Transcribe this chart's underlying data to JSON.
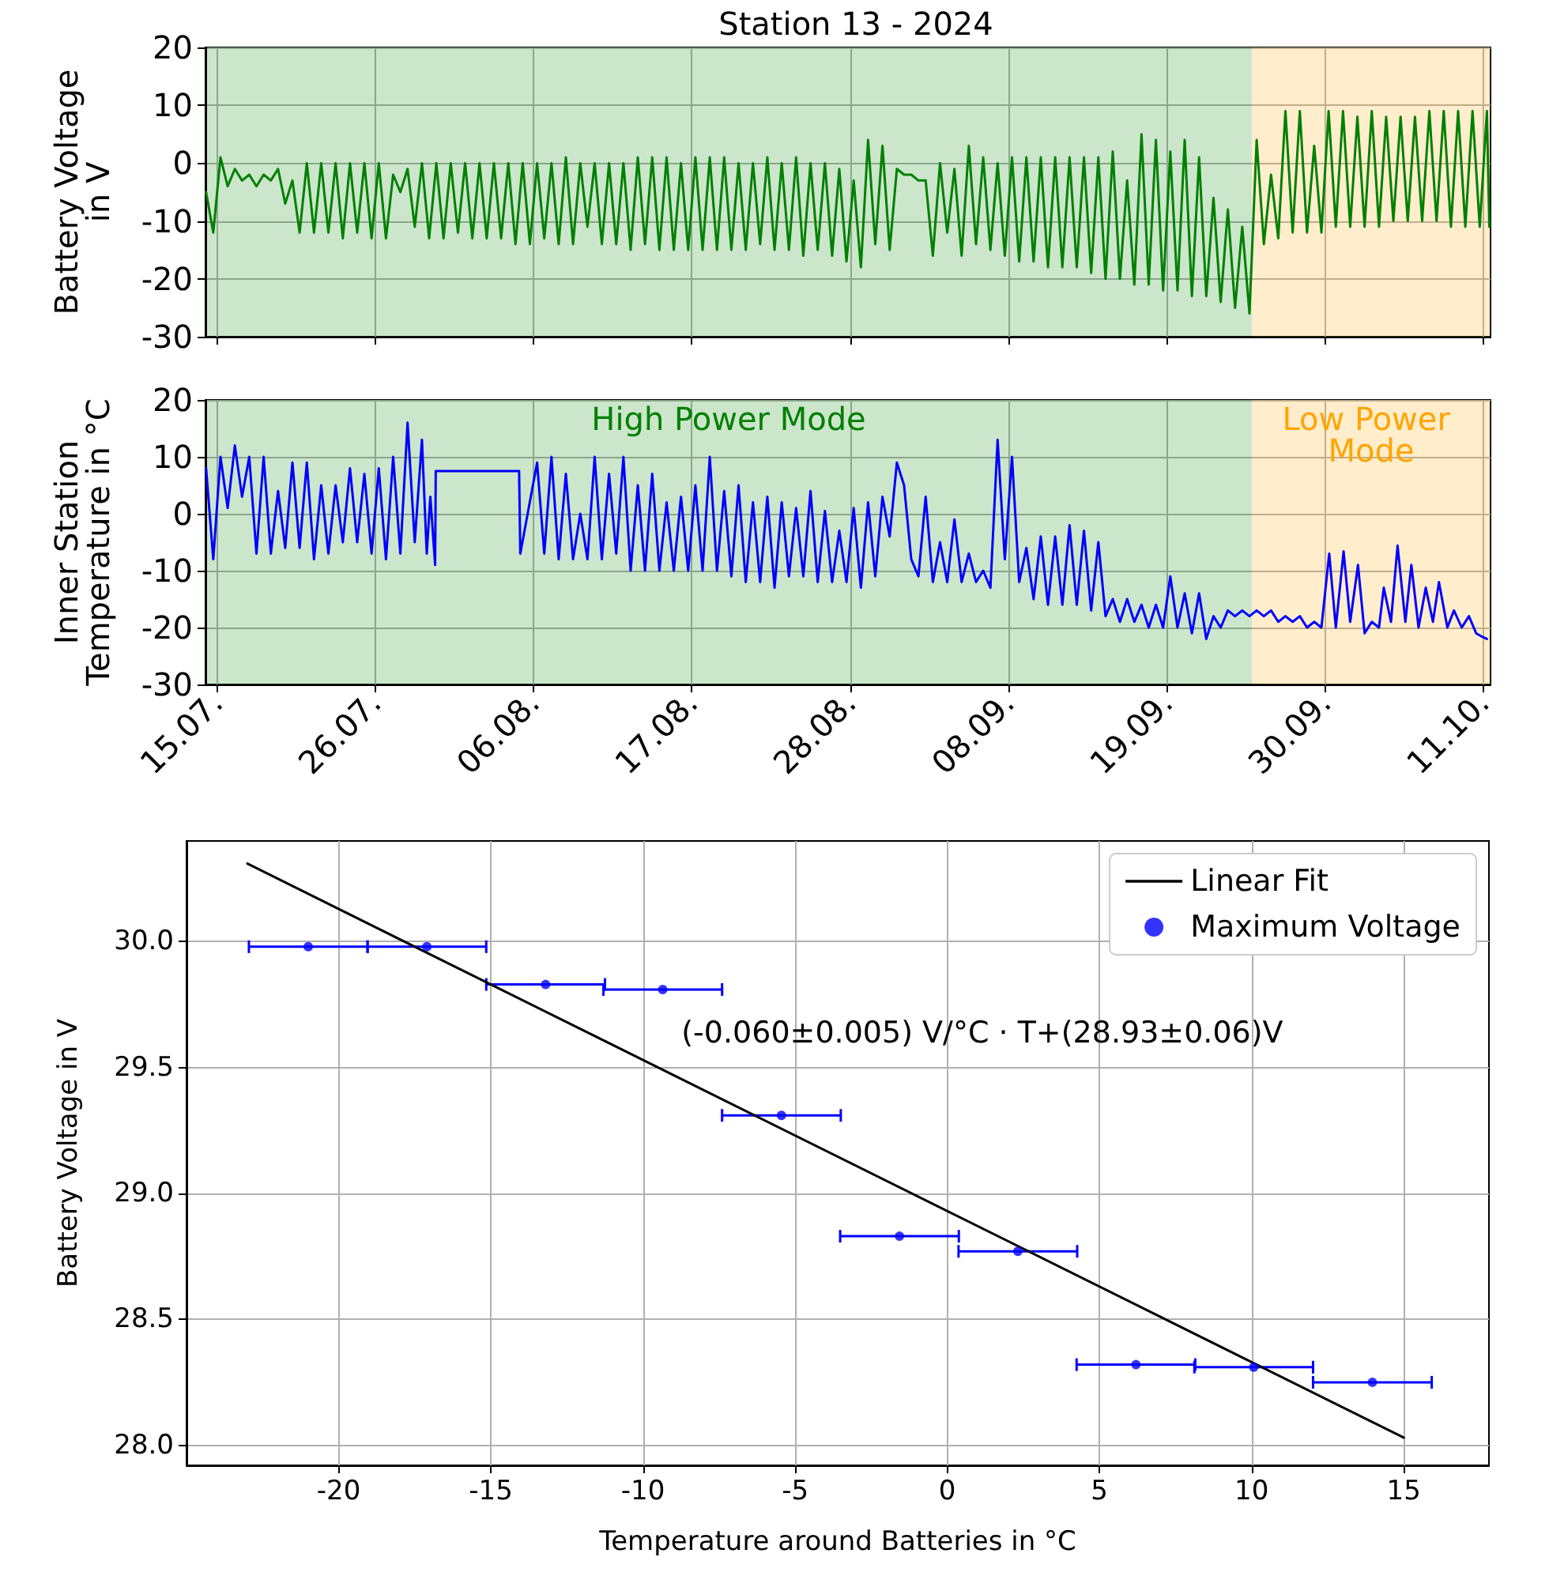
{
  "chart_data": [
    {
      "type": "line",
      "title": "Station 13 - 2024",
      "ylabel": "Battery Voltage\nin V",
      "xlim": [
        "2024-07-14T05:00",
        "2024-10-11T12:00"
      ],
      "ylim": [
        -30,
        20
      ],
      "yticks": [
        -30,
        -20,
        -10,
        0,
        10,
        20
      ],
      "xticks": [
        {
          "value": "2024-07-15",
          "label": null
        },
        {
          "value": "2024-07-26",
          "label": null
        },
        {
          "value": "2024-08-06",
          "label": null
        },
        {
          "value": "2024-08-17",
          "label": null
        },
        {
          "value": "2024-08-28",
          "label": null
        },
        {
          "value": "2024-09-08",
          "label": null
        },
        {
          "value": "2024-09-19",
          "label": null
        },
        {
          "value": "2024-09-30",
          "label": null
        },
        {
          "value": "2024-10-11",
          "label": null
        }
      ],
      "tick_labels": "y",
      "grid": true,
      "legend": false,
      "bands": [
        {
          "axis": "x",
          "from": "2024-07-14T05:00",
          "to": "2024-09-24T22:00",
          "color": "#008000"
        },
        {
          "axis": "x",
          "from": "2024-09-24T22:00",
          "to": "2024-10-11T12:00",
          "color": "#ffa500"
        }
      ],
      "series": [
        {
          "color": "#008000",
          "x": [
            "2024-07-14T06:00",
            "2024-07-14T18:00",
            "2024-07-15T06:00",
            "2024-07-15T18:00",
            "2024-07-16T06:00",
            "2024-07-16T18:00",
            "2024-07-17T06:00",
            "2024-07-17T18:00",
            "2024-07-18T06:00",
            "2024-07-18T18:00",
            "2024-07-19T06:00",
            "2024-07-19T18:00",
            "2024-07-20T06:00",
            "2024-07-20T18:00",
            "2024-07-21T06:00",
            "2024-07-21T18:00",
            "2024-07-22T06:00",
            "2024-07-22T18:00",
            "2024-07-23T06:00",
            "2024-07-23T18:00",
            "2024-07-24T06:00",
            "2024-07-24T18:00",
            "2024-07-25T06:00",
            "2024-07-25T18:00",
            "2024-07-26T06:00",
            "2024-07-26T18:00",
            "2024-07-27T06:00",
            "2024-07-27T18:00",
            "2024-07-28T06:00",
            "2024-07-28T18:00",
            "2024-07-29T06:00",
            "2024-07-29T18:00",
            "2024-07-30T06:00",
            "2024-07-30T18:00",
            "2024-07-31T06:00",
            "2024-07-31T18:00",
            "2024-08-01T06:00",
            "2024-08-01T18:00",
            "2024-08-02T06:00",
            "2024-08-02T18:00",
            "2024-08-03T06:00",
            "2024-08-03T18:00",
            "2024-08-04T06:00",
            "2024-08-04T18:00",
            "2024-08-05T06:00",
            "2024-08-05T18:00",
            "2024-08-06T06:00",
            "2024-08-06T18:00",
            "2024-08-07T06:00",
            "2024-08-07T18:00",
            "2024-08-08T06:00",
            "2024-08-08T18:00",
            "2024-08-09T06:00",
            "2024-08-09T18:00",
            "2024-08-10T06:00",
            "2024-08-10T18:00",
            "2024-08-11T06:00",
            "2024-08-11T18:00",
            "2024-08-12T06:00",
            "2024-08-12T18:00",
            "2024-08-13T06:00",
            "2024-08-13T18:00",
            "2024-08-14T06:00",
            "2024-08-14T18:00",
            "2024-08-15T06:00",
            "2024-08-15T18:00",
            "2024-08-16T06:00",
            "2024-08-16T18:00",
            "2024-08-17T06:00",
            "2024-08-17T18:00",
            "2024-08-18T06:00",
            "2024-08-18T18:00",
            "2024-08-19T06:00",
            "2024-08-19T18:00",
            "2024-08-20T06:00",
            "2024-08-20T18:00",
            "2024-08-21T06:00",
            "2024-08-21T18:00",
            "2024-08-22T06:00",
            "2024-08-22T18:00",
            "2024-08-23T06:00",
            "2024-08-23T18:00",
            "2024-08-24T06:00",
            "2024-08-24T18:00",
            "2024-08-25T06:00",
            "2024-08-25T18:00",
            "2024-08-26T06:00",
            "2024-08-26T18:00",
            "2024-08-27T06:00",
            "2024-08-27T18:00",
            "2024-08-28T06:00",
            "2024-08-28T18:00",
            "2024-08-29T06:00",
            "2024-08-29T18:00",
            "2024-08-30T06:00",
            "2024-08-30T18:00",
            "2024-08-31T06:00",
            "2024-08-31T18:00",
            "2024-09-01T06:00",
            "2024-09-01T18:00",
            "2024-09-02T06:00",
            "2024-09-02T18:00",
            "2024-09-03T06:00",
            "2024-09-03T18:00",
            "2024-09-04T06:00",
            "2024-09-04T18:00",
            "2024-09-05T06:00",
            "2024-09-05T18:00",
            "2024-09-06T06:00",
            "2024-09-06T18:00",
            "2024-09-07T06:00",
            "2024-09-07T18:00",
            "2024-09-08T06:00",
            "2024-09-08T18:00",
            "2024-09-09T06:00",
            "2024-09-09T18:00",
            "2024-09-10T06:00",
            "2024-09-10T18:00",
            "2024-09-11T06:00",
            "2024-09-11T18:00",
            "2024-09-12T06:00",
            "2024-09-12T18:00",
            "2024-09-13T06:00",
            "2024-09-13T18:00",
            "2024-09-14T06:00",
            "2024-09-14T18:00",
            "2024-09-15T06:00",
            "2024-09-15T18:00",
            "2024-09-16T06:00",
            "2024-09-16T18:00",
            "2024-09-17T06:00",
            "2024-09-17T18:00",
            "2024-09-18T06:00",
            "2024-09-18T18:00",
            "2024-09-19T06:00",
            "2024-09-19T18:00",
            "2024-09-20T06:00",
            "2024-09-20T18:00",
            "2024-09-21T06:00",
            "2024-09-21T18:00",
            "2024-09-22T06:00",
            "2024-09-22T18:00",
            "2024-09-23T06:00",
            "2024-09-23T18:00",
            "2024-09-24T06:00",
            "2024-09-24T18:00",
            "2024-09-25T06:00",
            "2024-09-25T18:00",
            "2024-09-26T06:00",
            "2024-09-26T18:00",
            "2024-09-27T06:00",
            "2024-09-27T18:00",
            "2024-09-28T06:00",
            "2024-09-28T18:00",
            "2024-09-29T06:00",
            "2024-09-29T18:00",
            "2024-09-30T06:00",
            "2024-09-30T18:00",
            "2024-10-01T06:00",
            "2024-10-01T18:00",
            "2024-10-02T06:00",
            "2024-10-02T18:00",
            "2024-10-03T06:00",
            "2024-10-03T18:00",
            "2024-10-04T06:00",
            "2024-10-04T18:00",
            "2024-10-05T06:00",
            "2024-10-05T18:00",
            "2024-10-06T06:00",
            "2024-10-06T18:00",
            "2024-10-07T06:00",
            "2024-10-07T18:00",
            "2024-10-08T06:00",
            "2024-10-08T18:00",
            "2024-10-09T06:00",
            "2024-10-09T18:00",
            "2024-10-10T06:00",
            "2024-10-10T18:00",
            "2024-10-11T06:00",
            "2024-10-11T10:00"
          ],
          "values": [
            -5,
            -12,
            1,
            -4,
            -1,
            -3,
            -2,
            -4,
            -2,
            -3,
            -1,
            -7,
            -3,
            -12,
            0,
            -12,
            0,
            -12,
            0,
            -13,
            0,
            -12,
            0,
            -13,
            0,
            -13,
            -2,
            -5,
            -1,
            -11,
            0,
            -13,
            0,
            -13,
            0,
            -12,
            0,
            -13,
            0,
            -13,
            0,
            -13,
            0,
            -14,
            0,
            -14,
            0,
            -13,
            0,
            -14,
            1,
            -14,
            0,
            -11,
            0,
            -14,
            0,
            -14,
            0,
            -15,
            1,
            -14,
            1,
            -15,
            1,
            -15,
            0,
            -15,
            1,
            -15,
            1,
            -15,
            1,
            -15,
            0,
            -15,
            0,
            -14,
            1,
            -15,
            0,
            -15,
            1,
            -16,
            0,
            -15,
            0,
            -16,
            -1,
            -17,
            -3,
            -18,
            4,
            -14,
            3,
            -15,
            -1,
            -2,
            -2,
            -3,
            -3,
            -16,
            0,
            -12,
            -1,
            -16,
            3,
            -14,
            1,
            -15,
            0,
            -16,
            1,
            -17,
            1,
            -17,
            1,
            -18,
            1,
            -18,
            1,
            -18,
            1,
            -19,
            1,
            -20,
            2,
            -20,
            -3,
            -21,
            5,
            -21,
            4,
            -22,
            2,
            -22,
            4,
            -23,
            1,
            -23,
            -6,
            -24,
            -8,
            -25,
            -11,
            -26,
            4,
            -14,
            -2,
            -13,
            9,
            -12,
            9,
            -12,
            3,
            -12,
            9,
            -11,
            9,
            -11,
            8,
            -11,
            9,
            -11,
            8,
            -10,
            8,
            -10,
            8,
            -10,
            9,
            -10,
            9,
            -11,
            9,
            -11,
            9,
            -11,
            9,
            -11
          ]
        }
      ]
    },
    {
      "type": "line",
      "ylabel": "Inner Station\nTemperature in °C",
      "xlim": [
        "2024-07-14T05:00",
        "2024-10-11T12:00"
      ],
      "ylim": [
        -30,
        20
      ],
      "yticks": [
        -30,
        -20,
        -10,
        0,
        10,
        20
      ],
      "xticks": [
        {
          "value": "2024-07-15",
          "label": "15.07."
        },
        {
          "value": "2024-07-26",
          "label": "26.07."
        },
        {
          "value": "2024-08-06",
          "label": "06.08."
        },
        {
          "value": "2024-08-17",
          "label": "17.08."
        },
        {
          "value": "2024-08-28",
          "label": "28.08."
        },
        {
          "value": "2024-09-08",
          "label": "08.09."
        },
        {
          "value": "2024-09-19",
          "label": "19.09."
        },
        {
          "value": "2024-09-30",
          "label": "30.09."
        },
        {
          "value": "2024-10-11",
          "label": "11.10."
        }
      ],
      "grid": true,
      "legend": false,
      "bands": [
        {
          "axis": "x",
          "from": "2024-07-14T05:00",
          "to": "2024-09-24T22:00",
          "color": "#008000",
          "label": "High Power Mode"
        },
        {
          "axis": "x",
          "from": "2024-09-24T22:00",
          "to": "2024-10-11T12:00",
          "color": "#ffa500",
          "label": "Low Power Mode"
        }
      ],
      "series": [
        {
          "color": "#0000ff",
          "x": [
            "2024-07-14T06:00",
            "2024-07-14T18:00",
            "2024-07-15T06:00",
            "2024-07-15T18:00",
            "2024-07-16T06:00",
            "2024-07-16T18:00",
            "2024-07-17T06:00",
            "2024-07-17T18:00",
            "2024-07-18T06:00",
            "2024-07-18T18:00",
            "2024-07-19T06:00",
            "2024-07-19T18:00",
            "2024-07-20T06:00",
            "2024-07-20T18:00",
            "2024-07-21T06:00",
            "2024-07-21T18:00",
            "2024-07-22T06:00",
            "2024-07-22T18:00",
            "2024-07-23T06:00",
            "2024-07-23T18:00",
            "2024-07-24T06:00",
            "2024-07-24T18:00",
            "2024-07-25T06:00",
            "2024-07-25T18:00",
            "2024-07-26T06:00",
            "2024-07-26T18:00",
            "2024-07-27T06:00",
            "2024-07-27T18:00",
            "2024-07-28T06:00",
            "2024-07-28T18:00",
            "2024-07-29T06:00",
            "2024-07-29T14:00",
            "2024-07-29T20:00",
            "2024-07-30T04:00",
            "2024-07-30T05:00",
            "2024-08-05T00:00",
            "2024-08-05T02:00",
            "2024-08-06T06:00",
            "2024-08-06T18:00",
            "2024-08-07T06:00",
            "2024-08-07T18:00",
            "2024-08-08T06:00",
            "2024-08-08T18:00",
            "2024-08-09T06:00",
            "2024-08-09T18:00",
            "2024-08-10T06:00",
            "2024-08-10T18:00",
            "2024-08-11T06:00",
            "2024-08-11T18:00",
            "2024-08-12T06:00",
            "2024-08-12T18:00",
            "2024-08-13T06:00",
            "2024-08-13T18:00",
            "2024-08-14T06:00",
            "2024-08-14T18:00",
            "2024-08-15T06:00",
            "2024-08-15T18:00",
            "2024-08-16T06:00",
            "2024-08-16T18:00",
            "2024-08-17T06:00",
            "2024-08-17T18:00",
            "2024-08-18T06:00",
            "2024-08-18T18:00",
            "2024-08-19T06:00",
            "2024-08-19T18:00",
            "2024-08-20T06:00",
            "2024-08-20T18:00",
            "2024-08-21T06:00",
            "2024-08-21T18:00",
            "2024-08-22T06:00",
            "2024-08-22T18:00",
            "2024-08-23T06:00",
            "2024-08-23T18:00",
            "2024-08-24T06:00",
            "2024-08-24T18:00",
            "2024-08-25T06:00",
            "2024-08-25T18:00",
            "2024-08-26T06:00",
            "2024-08-26T18:00",
            "2024-08-27T06:00",
            "2024-08-27T18:00",
            "2024-08-28T06:00",
            "2024-08-28T18:00",
            "2024-08-29T06:00",
            "2024-08-29T18:00",
            "2024-08-30T06:00",
            "2024-08-30T18:00",
            "2024-08-31T06:00",
            "2024-08-31T18:00",
            "2024-09-01T06:00",
            "2024-09-01T18:00",
            "2024-09-02T06:00",
            "2024-09-02T18:00",
            "2024-09-03T06:00",
            "2024-09-03T18:00",
            "2024-09-04T06:00",
            "2024-09-04T18:00",
            "2024-09-05T06:00",
            "2024-09-05T18:00",
            "2024-09-06T06:00",
            "2024-09-06T18:00",
            "2024-09-07T06:00",
            "2024-09-07T18:00",
            "2024-09-08T06:00",
            "2024-09-08T18:00",
            "2024-09-09T06:00",
            "2024-09-09T18:00",
            "2024-09-10T06:00",
            "2024-09-10T18:00",
            "2024-09-11T06:00",
            "2024-09-11T18:00",
            "2024-09-12T06:00",
            "2024-09-12T18:00",
            "2024-09-13T06:00",
            "2024-09-13T18:00",
            "2024-09-14T06:00",
            "2024-09-14T18:00",
            "2024-09-15T06:00",
            "2024-09-15T18:00",
            "2024-09-16T06:00",
            "2024-09-16T18:00",
            "2024-09-17T06:00",
            "2024-09-17T18:00",
            "2024-09-18T06:00",
            "2024-09-18T18:00",
            "2024-09-19T06:00",
            "2024-09-19T18:00",
            "2024-09-20T06:00",
            "2024-09-20T18:00",
            "2024-09-21T06:00",
            "2024-09-21T18:00",
            "2024-09-22T06:00",
            "2024-09-22T18:00",
            "2024-09-23T06:00",
            "2024-09-23T18:00",
            "2024-09-24T06:00",
            "2024-09-24T18:00",
            "2024-09-25T06:00",
            "2024-09-25T18:00",
            "2024-09-26T06:00",
            "2024-09-26T18:00",
            "2024-09-27T06:00",
            "2024-09-27T18:00",
            "2024-09-28T06:00",
            "2024-09-28T18:00",
            "2024-09-29T06:00",
            "2024-09-29T18:00",
            "2024-09-30T07:00",
            "2024-09-30T18:00",
            "2024-10-01T07:00",
            "2024-10-01T18:00",
            "2024-10-02T07:00",
            "2024-10-02T18:00",
            "2024-10-03T06:00",
            "2024-10-03T18:00",
            "2024-10-04T02:00",
            "2024-10-04T14:00",
            "2024-10-05T01:00",
            "2024-10-05T14:00",
            "2024-10-06T00:00",
            "2024-10-06T12:00",
            "2024-10-07T00:00",
            "2024-10-07T12:00",
            "2024-10-07T22:00",
            "2024-10-08T12:00",
            "2024-10-08T23:00",
            "2024-10-09T12:00",
            "2024-10-10T00:00",
            "2024-10-10T12:00",
            "2024-10-10T20:00",
            "2024-10-11T06:00"
          ],
          "values": [
            8,
            -8,
            10,
            1,
            12,
            3,
            10,
            -7,
            10,
            -7,
            4,
            -6,
            9,
            -6,
            9,
            -8,
            5,
            -7,
            5,
            -5,
            8,
            -5,
            7,
            -7,
            8,
            -8,
            10,
            -7,
            16,
            -5,
            13,
            -7,
            3,
            -9,
            7.5,
            7.5,
            -7,
            9,
            -7,
            10,
            -8,
            7,
            -8,
            0,
            -8,
            10,
            -8,
            7,
            -7,
            10,
            -10,
            5,
            -10,
            7,
            -10,
            2,
            -10,
            3,
            -10,
            5,
            -10,
            10,
            -10,
            4,
            -11,
            5,
            -12,
            2,
            -12,
            3,
            -13,
            2,
            -11,
            1,
            -11,
            4,
            -12,
            0.5,
            -12,
            -3,
            -12,
            1,
            -13,
            2,
            -11,
            3,
            -4,
            9,
            5,
            -8,
            -11,
            3,
            -12,
            -5,
            -12,
            -1,
            -12,
            -7,
            -12,
            -10,
            -13,
            13,
            -8,
            10,
            -12,
            -6,
            -15,
            -4,
            -16,
            -4,
            -16,
            -2,
            -16,
            -3,
            -17,
            -5,
            -18,
            -15,
            -19,
            -15,
            -19,
            -16,
            -20,
            -16,
            -20,
            -11,
            -20,
            -14,
            -21,
            -14,
            -22,
            -18,
            -20,
            -17,
            -18,
            -17,
            -18,
            -17,
            -18,
            -17,
            -19,
            -18,
            -19,
            -18,
            -20,
            -19,
            -20,
            -7,
            -20,
            -6.6,
            -19,
            -9,
            -21,
            -19,
            -20,
            -13,
            -19,
            -5.6,
            -19,
            -9,
            -20,
            -13,
            -19,
            -12,
            -20,
            -17,
            -20,
            -18,
            -21,
            -21.5,
            -22
          ]
        }
      ]
    },
    {
      "type": "scatter",
      "xlabel": "Temperature around Batteries in °C",
      "ylabel": "Battery Voltage in V",
      "xlim": [
        -25,
        17.8
      ],
      "ylim": [
        27.92,
        30.4
      ],
      "xticks": [
        -20,
        -15,
        -10,
        -5,
        0,
        5,
        10,
        15
      ],
      "yticks": [
        {
          "value": 28,
          "label": "28.0"
        },
        {
          "value": 28.5,
          "label": "28.5"
        },
        {
          "value": 29,
          "label": "29.0"
        },
        {
          "value": 29.5,
          "label": "29.5"
        },
        {
          "value": 30,
          "label": "30.0"
        }
      ],
      "grid": true,
      "legend": "top right",
      "annotations": [
        "(-0.060±0.005) V/°C · T+(28.93±0.06)V"
      ],
      "series": [
        {
          "name": "Linear Fit",
          "type": "line",
          "color": "#000000",
          "x": [
            -23,
            15
          ],
          "values": [
            30.31,
            28.03
          ]
        },
        {
          "name": "Maximum Voltage",
          "color": "#0000ff",
          "marker": "circle",
          "x": [
            -21.0,
            -17.1,
            -13.2,
            -9.35,
            -5.45,
            -1.57,
            2.32,
            6.2,
            10.07,
            13.97
          ],
          "values": [
            29.98,
            29.98,
            29.83,
            29.81,
            29.31,
            28.83,
            28.77,
            28.32,
            28.31,
            28.25
          ],
          "xerrors": [
            1.95,
            1.95,
            1.95,
            1.95,
            1.95,
            1.95,
            1.95,
            1.95,
            1.95,
            1.95
          ]
        }
      ]
    }
  ]
}
